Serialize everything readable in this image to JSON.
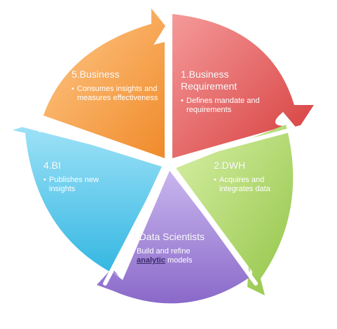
{
  "segments": [
    {
      "id": "business",
      "title": "5.Business",
      "bullet": "Consumes insights and measures effectiveness",
      "color": "#f59a3c"
    },
    {
      "id": "requirement",
      "title": "1.Business Requirement",
      "bullet": "Defines mandate and requirements",
      "color": "#e05a5a"
    },
    {
      "id": "dwh",
      "title": "2.DWH",
      "bullet": "Acquires and integrates data",
      "color": "#a9d45f"
    },
    {
      "id": "scientists",
      "title": "3.Data Scientists",
      "bullet_before": "Build and refine",
      "bullet_keyword": "analytic",
      "bullet_after": "models",
      "color": "#9b7fd4"
    },
    {
      "id": "bi",
      "title": "4.BI",
      "bullet": "Publishes new insights",
      "color": "#49c4e8"
    }
  ]
}
